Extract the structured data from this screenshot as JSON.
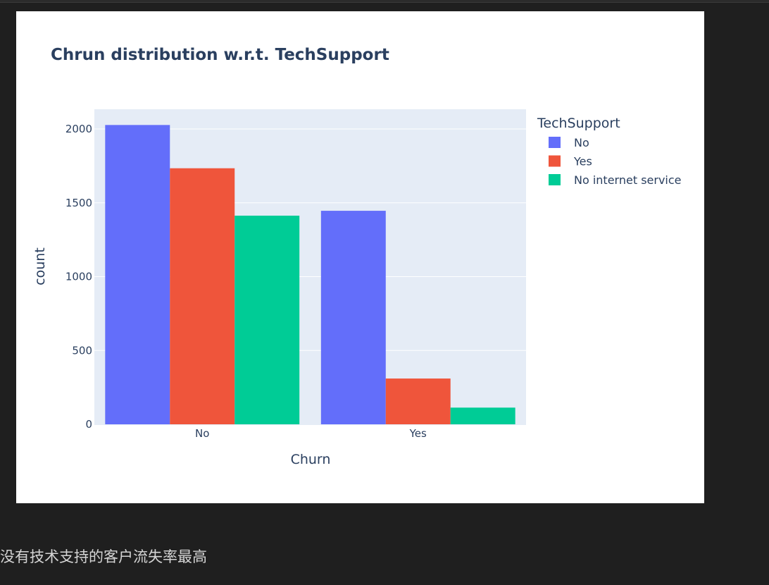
{
  "chart_data": {
    "type": "bar",
    "title": "Chrun distribution w.r.t. TechSupport",
    "xlabel": "Churn",
    "ylabel": "count",
    "categories": [
      "No",
      "Yes"
    ],
    "ylim": [
      0,
      2150
    ],
    "yticks": [
      0,
      500,
      1000,
      1500,
      2000
    ],
    "ytick_labels": [
      "0",
      "500",
      "1000",
      "1500",
      "2000"
    ],
    "legend_title": "TechSupport",
    "legend_position": "top-right",
    "grid": true,
    "series": [
      {
        "name": "No",
        "color": "#636efa",
        "values": [
          2027,
          1446
        ]
      },
      {
        "name": "Yes",
        "color": "#ef553b",
        "values": [
          1734,
          310
        ]
      },
      {
        "name": "No internet service",
        "color": "#00cc96",
        "values": [
          1413,
          113
        ]
      }
    ],
    "colors": {
      "plot_bg": "#e5ecf6",
      "text": "#2a3f5f",
      "grid": "#ffffff"
    }
  },
  "caption": "没有技术支持的客户流失率最高"
}
